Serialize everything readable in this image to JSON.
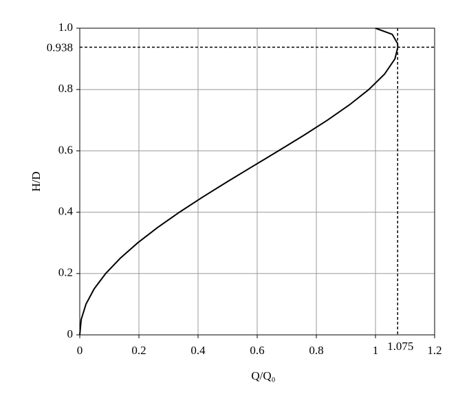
{
  "chart_data": {
    "type": "line",
    "x_label": "Q/Q₀",
    "y_label": "H/D",
    "series": [
      {
        "color": "#000000",
        "x": [
          0,
          0.0048,
          0.0209,
          0.0486,
          0.0876,
          0.137,
          0.1959,
          0.2629,
          0.337,
          0.4166,
          0.5,
          0.5857,
          0.6718,
          0.7564,
          0.8373,
          0.9119,
          0.9774,
          1.0305,
          1.0658,
          1.0755,
          1.0746,
          1.0567,
          1
        ],
        "values": [
          0,
          0.05,
          0.1,
          0.15,
          0.2,
          0.25,
          0.3,
          0.35,
          0.4,
          0.45,
          0.5,
          0.55,
          0.6,
          0.65,
          0.7,
          0.75,
          0.8,
          0.85,
          0.9,
          0.938,
          0.95,
          0.98,
          1
        ]
      }
    ],
    "reference_lines": [
      {
        "axis": "x",
        "value": 1.075
      },
      {
        "axis": "y",
        "value": 0.938
      }
    ],
    "xlim": [
      0,
      1.2
    ],
    "xticks": [
      0,
      0.2,
      0.4,
      0.6,
      0.8,
      1,
      1.2
    ],
    "ylim": [
      0,
      1
    ],
    "yticks": [
      0,
      0.2,
      0.4,
      0.6,
      0.8,
      {
        "value": 1,
        "label": "1.0"
      }
    ],
    "grid": true
  }
}
